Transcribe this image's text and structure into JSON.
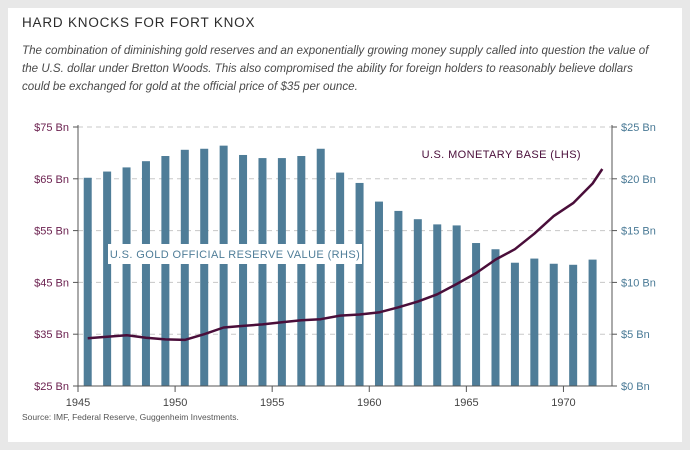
{
  "title": "HARD KNOCKS FOR FORT KNOX",
  "subtitle": "The combination of diminishing gold reserves and an exponentially growing money supply called into question the value of the U.S. dollar under Bretton Woods. This also compromised the ability for foreign holders to reasonably believe dollars could be exchanged for gold at the official price of $35 per ounce.",
  "source": "Source: IMF, Federal Reserve, Guggenheim Investments.",
  "colors": {
    "bars": "#4f7d98",
    "line": "#4a0e3a",
    "grid": "#c8c8c8",
    "left_axis": "#6a1f4e",
    "right_axis": "#4a7a96"
  },
  "chart_data": {
    "type": "bar",
    "x_ticks": [
      "1945",
      "1950",
      "1955",
      "1960",
      "1965",
      "1970"
    ],
    "y_left_ticks": [
      "$25 Bn",
      "$35 Bn",
      "$45 Bn",
      "$55 Bn",
      "$65 Bn",
      "$75 Bn"
    ],
    "y_right_ticks": [
      "$0 Bn",
      "$5 Bn",
      "$10 Bn",
      "$15 Bn",
      "$20 Bn",
      "$25 Bn"
    ],
    "y_left_range": [
      25,
      75
    ],
    "y_right_range": [
      0,
      25
    ],
    "x_range": [
      1945,
      1972.5
    ],
    "grid": true,
    "series": [
      {
        "name": "U.S. GOLD OFFICIAL RESERVE VALUE (RHS)",
        "type": "bar",
        "axis": "right",
        "x": [
          1945,
          1946,
          1947,
          1948,
          1949,
          1950,
          1951,
          1952,
          1953,
          1954,
          1955,
          1956,
          1957,
          1958,
          1959,
          1960,
          1961,
          1962,
          1963,
          1964,
          1965,
          1966,
          1967,
          1968,
          1969,
          1970,
          1971
        ],
        "values": [
          20.1,
          20.7,
          21.1,
          21.7,
          22.2,
          22.8,
          22.9,
          23.2,
          22.3,
          22.0,
          22.0,
          22.2,
          22.9,
          20.6,
          19.6,
          17.8,
          16.9,
          16.1,
          15.6,
          15.5,
          13.8,
          13.2,
          11.9,
          12.3,
          11.8,
          11.7,
          12.2
        ]
      },
      {
        "name": "U.S. MONETARY BASE (LHS)",
        "type": "line",
        "axis": "left",
        "x": [
          1945,
          1946,
          1947,
          1948,
          1949,
          1950,
          1951,
          1952,
          1953,
          1954,
          1955,
          1956,
          1957,
          1958,
          1959,
          1960,
          1961,
          1962,
          1963,
          1964,
          1965,
          1966,
          1967,
          1968,
          1969,
          1970,
          1971,
          1971.5
        ],
        "values": [
          34.2,
          34.5,
          34.8,
          34.3,
          34.0,
          33.9,
          35.0,
          36.3,
          36.6,
          36.9,
          37.3,
          37.7,
          37.9,
          38.6,
          38.8,
          39.2,
          40.2,
          41.3,
          42.7,
          44.7,
          46.8,
          49.4,
          51.4,
          54.4,
          57.8,
          60.3,
          64.1,
          66.9
        ]
      }
    ]
  }
}
